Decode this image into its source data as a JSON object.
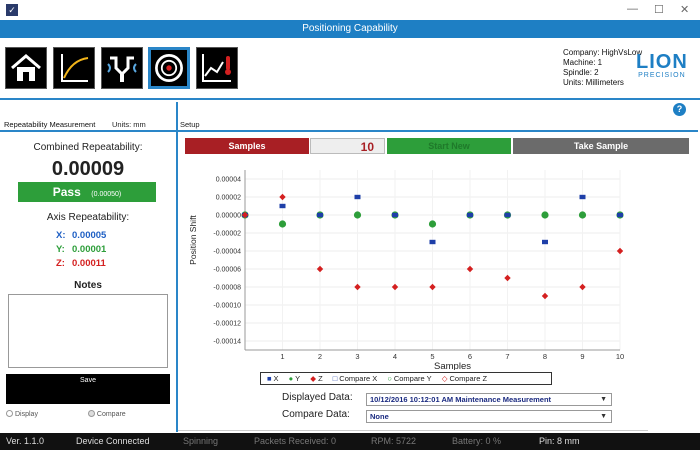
{
  "window": {
    "title": "Positioning Capability"
  },
  "toolbar": {
    "buttons": [
      "home-icon",
      "curve-chart-icon",
      "spindle-icon",
      "target-icon",
      "thermal-chart-icon"
    ],
    "active_index": 3
  },
  "info": {
    "company": "Company: HighVsLow",
    "machine": "Machine: 1",
    "spindle": "Spindle: 2",
    "units": "Units: Millimeters"
  },
  "logo": {
    "line1": "LION",
    "line2": "PRECISION"
  },
  "left_panel": {
    "header": "Repeatability Measurement",
    "units": "Units: mm",
    "combined_title": "Combined Repeatability:",
    "combined_value": "0.00009",
    "pass_label": "Pass",
    "pass_limit": "(0.00050)",
    "axis_title": "Axis Repeatability:",
    "axes": [
      {
        "label": "X:",
        "value": "0.00005",
        "color": "#1e5fc4"
      },
      {
        "label": "Y:",
        "value": "0.00001",
        "color": "#2d9e3a"
      },
      {
        "label": "Z:",
        "value": "0.00011",
        "color": "#d42020"
      }
    ],
    "notes_title": "Notes",
    "save_label": "Save",
    "radio_display": "Display",
    "radio_compare": "Compare"
  },
  "setup": {
    "header": "Setup",
    "samples_label": "Samples",
    "samples_count": "10",
    "start_label": "Start New",
    "take_label": "Take Sample"
  },
  "chart_data": {
    "type": "scatter",
    "xlabel": "Samples",
    "ylabel": "Position Shift",
    "xlim": [
      0,
      10
    ],
    "ylim": [
      -0.00015,
      5e-05
    ],
    "xticks": [
      "1",
      "2",
      "3",
      "4",
      "5",
      "6",
      "7",
      "8",
      "9",
      "10"
    ],
    "yticks": [
      "0.00004",
      "0.00002",
      "0.00000",
      "-0.00002",
      "-0.00004",
      "-0.00006",
      "-0.00008",
      "-0.00010",
      "-0.00012",
      "-0.00014"
    ],
    "series": [
      {
        "name": "X",
        "color": "#1e3fa8",
        "marker": "square",
        "x": [
          0,
          1,
          2,
          3,
          4,
          5,
          6,
          7,
          8,
          9,
          10
        ],
        "y": [
          0,
          1e-05,
          0,
          2e-05,
          0,
          -3e-05,
          0,
          0,
          -3e-05,
          2e-05,
          0
        ]
      },
      {
        "name": "Y",
        "color": "#2d9e3a",
        "marker": "circle",
        "x": [
          0,
          1,
          2,
          3,
          4,
          5,
          6,
          7,
          8,
          9,
          10
        ],
        "y": [
          0,
          -1e-05,
          0,
          0,
          0,
          -1e-05,
          0,
          0,
          0,
          0,
          0
        ]
      },
      {
        "name": "Z",
        "color": "#d42020",
        "marker": "diamond",
        "x": [
          0,
          1,
          2,
          3,
          4,
          5,
          6,
          7,
          8,
          9,
          10
        ],
        "y": [
          0,
          2e-05,
          -6e-05,
          -8e-05,
          -8e-05,
          -8e-05,
          -6e-05,
          -7e-05,
          -9e-05,
          -8e-05,
          -4e-05
        ]
      }
    ],
    "legend": [
      "X",
      "Y",
      "Z",
      "Compare X",
      "Compare Y",
      "Compare Z"
    ]
  },
  "data_select": {
    "displayed_label": "Displayed Data:",
    "displayed_value": "10/12/2016 10:12:01 AM Maintenance Measurement",
    "compare_label": "Compare Data:",
    "compare_value": "None"
  },
  "status": {
    "version": "Ver. 1.1.0",
    "connection": "Device Connected",
    "spinning": "Spinning",
    "packets": "Packets Received:  0",
    "rpm": "RPM:  5722",
    "battery": "Battery:  0  %",
    "pin": "Pin: 8 mm"
  }
}
